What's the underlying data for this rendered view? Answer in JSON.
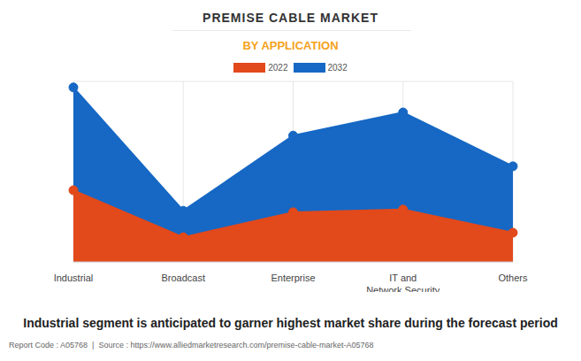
{
  "chart_data": {
    "type": "area",
    "title": "PREMISE CABLE MARKET",
    "subtitle": "BY APPLICATION",
    "categories": [
      "Industrial",
      "Broadcast",
      "Enterprise",
      "IT and\nNetwork Security",
      "Others"
    ],
    "series": [
      {
        "name": "2022",
        "color": "#e2491b",
        "values": [
          2.38,
          0.82,
          1.65,
          1.74,
          0.97
        ]
      },
      {
        "name": "2032",
        "color": "#1668c4",
        "values": [
          5.8,
          1.7,
          4.2,
          4.97,
          3.18
        ]
      }
    ],
    "ylim": [
      0,
      6
    ],
    "yticks": [
      0,
      1,
      2,
      3,
      4,
      5,
      6
    ],
    "grid": true,
    "tick_labels": "x",
    "legend": "top",
    "marker": "circle",
    "annotation": "Industrial segment is anticipated to garner highest market share during the forecast period",
    "source": "Report Code : A05768  |  Source : https://www.alliedmarketresearch.com/premise-cable-market-A05768"
  }
}
